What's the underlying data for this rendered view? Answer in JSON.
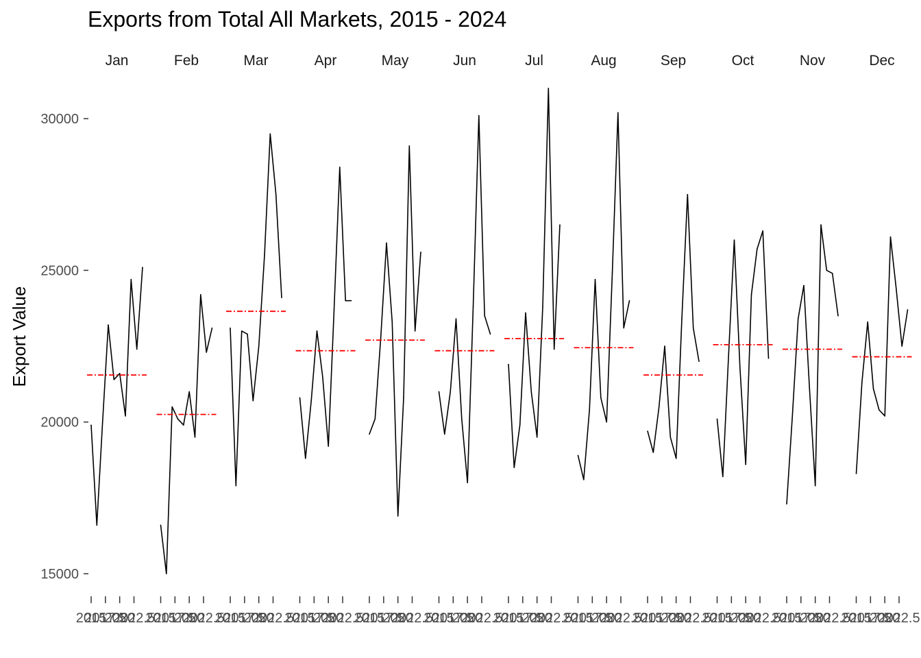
{
  "chart_data": {
    "type": "line",
    "title": "Exports from Total All Markets, 2015 - 2024",
    "xlabel": "",
    "ylabel": "Export Value",
    "ylim": [
      14300,
      31200
    ],
    "yticks": [
      15000,
      20000,
      25000,
      30000
    ],
    "ytick_labels": [
      "15000",
      "20000",
      "25000",
      "30000"
    ],
    "grid": false,
    "legend": "none",
    "years": [
      2015,
      2016,
      2017,
      2018,
      2019,
      2020,
      2021,
      2022,
      2023,
      2024
    ],
    "xtick_labels": [
      "2015",
      "2017.5",
      "2020",
      "2022.5"
    ],
    "line_color": "#000000",
    "mean_line_color": "#ff0000",
    "series": [
      {
        "month": "Jan",
        "values": [
          19900,
          16600,
          20000,
          23200,
          21400,
          21600,
          20200,
          24700,
          22400,
          25100
        ],
        "mean": 21550
      },
      {
        "month": "Feb",
        "values": [
          16600,
          15000,
          20500,
          20100,
          19900,
          21000,
          19500,
          24200,
          22300,
          23100
        ],
        "mean": 20250
      },
      {
        "month": "Mar",
        "values": [
          23100,
          17900,
          23000,
          22900,
          20700,
          22500,
          25500,
          29500,
          27500,
          24100
        ],
        "mean": 23650
      },
      {
        "month": "Apr",
        "values": [
          20800,
          18800,
          20700,
          23000,
          21500,
          19200,
          23700,
          28400,
          24000,
          24000
        ],
        "mean": 22350
      },
      {
        "month": "May",
        "values": [
          19600,
          20100,
          22800,
          25900,
          23300,
          16900,
          20800,
          29100,
          23000,
          25600
        ],
        "mean": 22700
      },
      {
        "month": "Jun",
        "values": [
          21000,
          19600,
          21000,
          23400,
          20100,
          18000,
          23800,
          30100,
          23500,
          22900
        ],
        "mean": 22350
      },
      {
        "month": "Jul",
        "values": [
          21900,
          18500,
          19900,
          23600,
          21000,
          19500,
          23800,
          31000,
          22400,
          26500
        ],
        "mean": 22750
      },
      {
        "month": "Aug",
        "values": [
          18900,
          18100,
          20400,
          24700,
          20800,
          20000,
          24900,
          30200,
          23100,
          24000
        ],
        "mean": 22450
      },
      {
        "month": "Sep",
        "values": [
          19700,
          19000,
          20500,
          22500,
          19500,
          18800,
          23400,
          27500,
          23100,
          22000
        ],
        "mean": 21550
      },
      {
        "month": "Oct",
        "values": [
          20100,
          18200,
          22200,
          26000,
          21800,
          18600,
          24200,
          25700,
          26300,
          22100
        ],
        "mean": 22550
      },
      {
        "month": "Nov",
        "values": [
          17300,
          20200,
          23400,
          24500,
          21100,
          17900,
          26500,
          25000,
          24900,
          23500
        ],
        "mean": 22400
      },
      {
        "month": "Dec",
        "values": [
          18300,
          21300,
          23300,
          21100,
          20400,
          20200,
          26100,
          24400,
          22500,
          23700
        ],
        "mean": 22150
      }
    ]
  }
}
